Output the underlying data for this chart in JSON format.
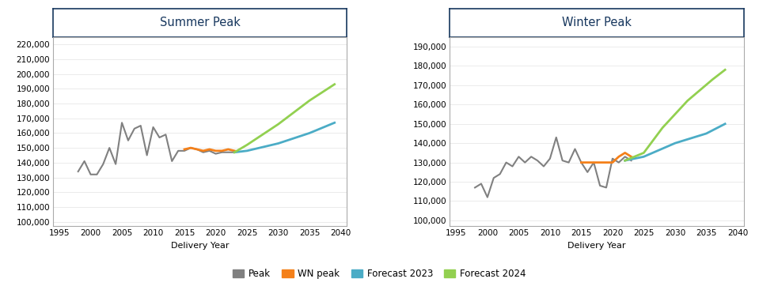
{
  "summer_peak_years": [
    1998,
    1999,
    2000,
    2001,
    2002,
    2003,
    2004,
    2005,
    2006,
    2007,
    2008,
    2009,
    2010,
    2011,
    2012,
    2013,
    2014,
    2015,
    2016,
    2017,
    2018,
    2019,
    2020,
    2021,
    2022,
    2023
  ],
  "summer_peak_values": [
    134000,
    141000,
    132000,
    132000,
    139000,
    150000,
    139000,
    167000,
    155000,
    163000,
    165000,
    145000,
    164000,
    157000,
    159000,
    141000,
    148000,
    148000,
    150000,
    149000,
    147000,
    148000,
    146000,
    147000,
    147000,
    147000
  ],
  "summer_wn_years": [
    2015,
    2016,
    2017,
    2018,
    2019,
    2020,
    2021,
    2022,
    2023
  ],
  "summer_wn_values": [
    149000,
    150000,
    149000,
    148000,
    149000,
    148000,
    148000,
    149000,
    148000
  ],
  "summer_f2023_years": [
    2023,
    2025,
    2030,
    2035,
    2039
  ],
  "summer_f2023_values": [
    147000,
    148000,
    153000,
    160000,
    167000
  ],
  "summer_f2024_years": [
    2023,
    2025,
    2030,
    2035,
    2039
  ],
  "summer_f2024_values": [
    147000,
    152000,
    166000,
    182000,
    193000
  ],
  "winter_peak_years": [
    1998,
    1999,
    2000,
    2001,
    2002,
    2003,
    2004,
    2005,
    2006,
    2007,
    2008,
    2009,
    2010,
    2011,
    2012,
    2013,
    2014,
    2015,
    2016,
    2017,
    2018,
    2019,
    2020,
    2021,
    2022,
    2023
  ],
  "winter_peak_values": [
    117000,
    119000,
    112000,
    122000,
    124000,
    130000,
    128000,
    133000,
    130000,
    133000,
    131000,
    128000,
    132000,
    143000,
    131000,
    130000,
    137000,
    130000,
    125000,
    130000,
    118000,
    117000,
    132000,
    130000,
    133000,
    131000
  ],
  "winter_wn_years": [
    2015,
    2016,
    2017,
    2018,
    2019,
    2020,
    2021,
    2022,
    2023
  ],
  "winter_wn_values": [
    130000,
    130000,
    130000,
    130000,
    130000,
    130000,
    133000,
    135000,
    133000
  ],
  "winter_f2023_years": [
    2022,
    2025,
    2030,
    2035,
    2038
  ],
  "winter_f2023_values": [
    131000,
    133000,
    140000,
    145000,
    150000
  ],
  "winter_f2024_years": [
    2022,
    2025,
    2028,
    2032,
    2036,
    2038
  ],
  "winter_f2024_values": [
    131000,
    135000,
    148000,
    162000,
    173000,
    178000
  ],
  "summer_ylim": [
    97000,
    225000
  ],
  "summer_yticks": [
    100000,
    110000,
    120000,
    130000,
    140000,
    150000,
    160000,
    170000,
    180000,
    190000,
    200000,
    210000,
    220000
  ],
  "winter_ylim": [
    97000,
    195000
  ],
  "winter_yticks": [
    100000,
    110000,
    120000,
    130000,
    140000,
    150000,
    160000,
    170000,
    180000,
    190000
  ],
  "xlim": [
    1994,
    2041
  ],
  "xticks": [
    1995,
    2000,
    2005,
    2010,
    2015,
    2020,
    2025,
    2030,
    2035,
    2040
  ],
  "xlabel": "Delivery Year",
  "color_peak": "#808080",
  "color_wn": "#F4801A",
  "color_f2023": "#4BACC6",
  "color_f2024": "#92D050",
  "title_summer": "Summer Peak",
  "title_winter": "Winter Peak",
  "title_color": "#17375E",
  "title_border_color": "#17375E",
  "legend_labels": [
    "Peak",
    "WN peak",
    "Forecast 2023",
    "Forecast 2024"
  ],
  "background_color": "#FFFFFF",
  "grid_color": "#E8E8E8",
  "spine_color": "#AAAAAA"
}
